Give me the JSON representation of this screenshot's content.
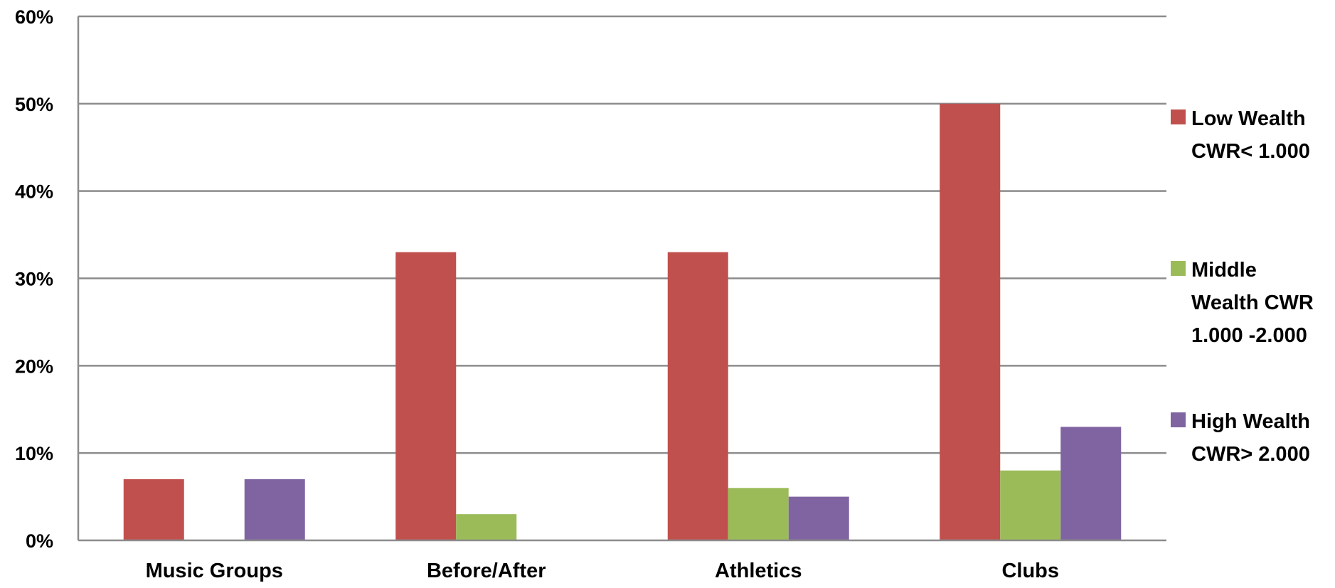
{
  "chart_data": {
    "type": "bar",
    "title": "",
    "xlabel": "",
    "ylabel": "",
    "ylim": [
      0,
      0.6
    ],
    "yticks": [
      "0%",
      "10%",
      "20%",
      "30%",
      "40%",
      "50%",
      "60%"
    ],
    "grid": true,
    "legend_position": "right",
    "categories": [
      "Music Groups",
      "Before/After",
      "Athletics",
      "Clubs"
    ],
    "series": [
      {
        "name": "Low Wealth CWR< 1.000",
        "legend_lines": [
          "Low Wealth",
          "CWR< 1.000"
        ],
        "color": "#C0504D",
        "values": [
          0.07,
          0.33,
          0.33,
          0.5
        ]
      },
      {
        "name": "Middle Wealth CWR 1.000 -2.000",
        "legend_lines": [
          "Middle",
          "Wealth CWR",
          "1.000 -2.000"
        ],
        "color": "#9BBB59",
        "values": [
          0.0,
          0.03,
          0.06,
          0.08
        ]
      },
      {
        "name": "High Wealth CWR> 2.000",
        "legend_lines": [
          "High Wealth",
          "CWR> 2.000"
        ],
        "color": "#8064A2",
        "values": [
          0.07,
          0.0,
          0.05,
          0.13
        ]
      }
    ]
  }
}
